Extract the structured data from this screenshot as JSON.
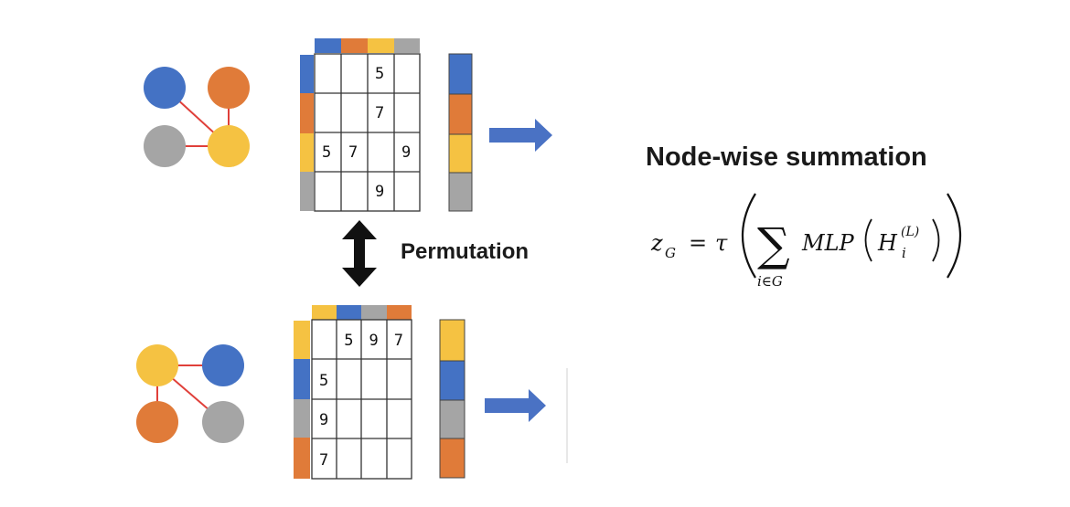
{
  "colors": {
    "blue": "#4472c4",
    "orange": "#e07b39",
    "yellow": "#f5c242",
    "gray": "#a5a5a5",
    "edge": "#e0403a",
    "arrow": "#4a72c4"
  },
  "top": {
    "nodes": [
      "blue",
      "orange",
      "gray",
      "yellow"
    ],
    "grid": [
      [
        "",
        "",
        "5",
        ""
      ],
      [
        "",
        "",
        "7",
        ""
      ],
      [
        "5",
        "7",
        "",
        "9"
      ],
      [
        "",
        "",
        "9",
        ""
      ]
    ]
  },
  "bottom": {
    "nodes": [
      "yellow",
      "blue",
      "orange",
      "gray"
    ],
    "grid": [
      [
        "",
        "5",
        "9",
        "7"
      ],
      [
        "5",
        "",
        "",
        ""
      ],
      [
        "9",
        "",
        "",
        ""
      ],
      [
        "7",
        "",
        "",
        ""
      ]
    ]
  },
  "permutation_label": "Permutation",
  "heading": "Node-wise summation",
  "formula": {
    "lhs": "z",
    "lhs_sub": "G",
    "tau": "τ",
    "sum_sub": "i∈G",
    "mlp": "MLP",
    "h": "H",
    "h_sub": "i",
    "h_sup": "(L)"
  }
}
